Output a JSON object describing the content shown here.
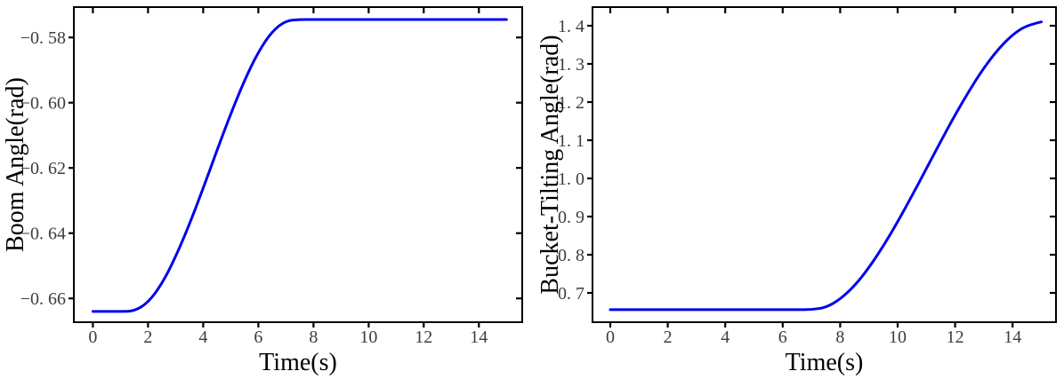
{
  "figure": {
    "background": "#ffffff",
    "axis_color": "#000000",
    "tick_label_color": "#3d3d3d",
    "curve_color": "#0000ee"
  },
  "chart_data": [
    {
      "type": "line",
      "panel": "left",
      "title": "",
      "xlabel": "Time(s)",
      "ylabel": "Boom Angle(rad)",
      "xlim": [
        -0.69,
        15.57
      ],
      "ylim": [
        -0.6673,
        -0.5707
      ],
      "x_ticks": [
        0,
        2,
        4,
        6,
        8,
        10,
        12,
        14
      ],
      "x_tick_labels": [
        "0",
        "2",
        "4",
        "6",
        "8",
        "10",
        "12",
        "14"
      ],
      "y_ticks": [
        -0.58,
        -0.6,
        -0.62,
        -0.64,
        -0.66
      ],
      "y_tick_labels": [
        "−0. 58",
        "−0. 60",
        "−0. 62",
        "−0. 64",
        "−0. 66"
      ],
      "grid": false,
      "legend": null,
      "series": [
        {
          "name": "boom-angle",
          "color": "#0000ee",
          "x": [
            0,
            0.5,
            1,
            1.5,
            2,
            2.5,
            3,
            3.5,
            4,
            4.5,
            5,
            5.5,
            6,
            6.5,
            7,
            7.5,
            8,
            8.5,
            9,
            9.5,
            10,
            10.5,
            11,
            11.5,
            12,
            12.5,
            13,
            13.5,
            14,
            14.5,
            15
          ],
          "y": [
            -0.664,
            -0.664,
            -0.664,
            -0.6639,
            -0.6613,
            -0.6556,
            -0.6473,
            -0.6373,
            -0.6262,
            -0.6146,
            -0.6034,
            -0.5931,
            -0.5844,
            -0.5781,
            -0.5748,
            -0.5745,
            -0.5745,
            -0.5745,
            -0.5745,
            -0.5745,
            -0.5745,
            -0.5745,
            -0.5745,
            -0.5745,
            -0.5745,
            -0.5745,
            -0.5745,
            -0.5745,
            -0.5745,
            -0.5745,
            -0.5745
          ]
        }
      ]
    },
    {
      "type": "line",
      "panel": "right",
      "title": "",
      "xlabel": "Time(s)",
      "ylabel": "Bucket-Tilting Angle(rad)",
      "xlim": [
        -0.62,
        15.51
      ],
      "ylim": [
        0.6233,
        1.4488
      ],
      "x_ticks": [
        0,
        2,
        4,
        6,
        8,
        10,
        12,
        14
      ],
      "x_tick_labels": [
        "0",
        "2",
        "4",
        "6",
        "8",
        "10",
        "12",
        "14"
      ],
      "y_ticks": [
        0.7,
        0.8,
        0.9,
        1.0,
        1.1,
        1.2,
        1.3,
        1.4
      ],
      "y_tick_labels": [
        "0. 7",
        "0. 8",
        "0. 9",
        "1. 0",
        "1. 1",
        "1. 2",
        "1. 3",
        "1. 4"
      ],
      "grid": false,
      "legend": null,
      "series": [
        {
          "name": "bucket-tilting-angle",
          "color": "#0000ee",
          "x": [
            0,
            0.5,
            1,
            1.5,
            2,
            2.5,
            3,
            3.5,
            4,
            4.5,
            5,
            5.5,
            6,
            6.5,
            7,
            7.5,
            8,
            8.5,
            9,
            9.5,
            10,
            10.5,
            11,
            11.5,
            12,
            12.5,
            13,
            13.5,
            14,
            14.5,
            15
          ],
          "y": [
            0.656,
            0.656,
            0.656,
            0.656,
            0.656,
            0.656,
            0.656,
            0.656,
            0.656,
            0.656,
            0.656,
            0.656,
            0.656,
            0.656,
            0.656,
            0.6616,
            0.6831,
            0.7187,
            0.7659,
            0.8225,
            0.8862,
            0.9548,
            1.0258,
            1.0972,
            1.1664,
            1.2312,
            1.2895,
            1.3388,
            1.3769,
            1.4015,
            1.41
          ]
        }
      ]
    }
  ]
}
